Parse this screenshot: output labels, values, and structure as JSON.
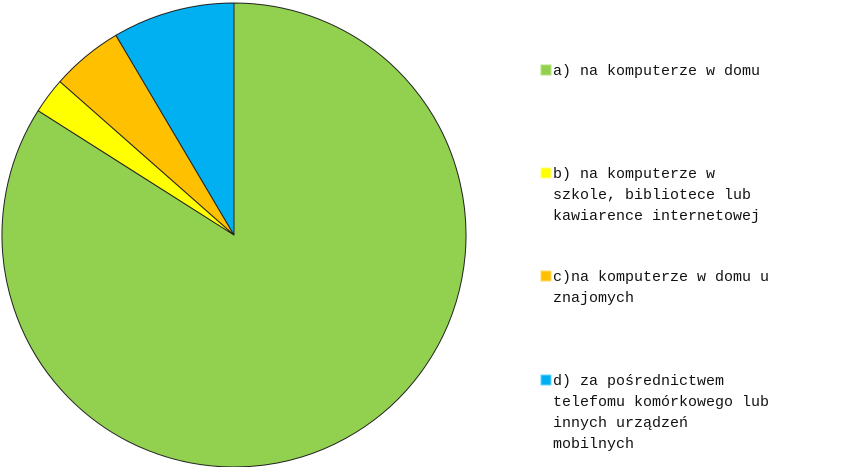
{
  "chart_data": {
    "type": "pie",
    "title": "",
    "slices": [
      {
        "label": "a) na komputerze w domu",
        "legend_lines": [
          "a) na komputerze w domu"
        ],
        "value": 84,
        "color": "#92d050",
        "edge": "#b5e07e"
      },
      {
        "label": "b) na komputerze w szkole, bibliotece lub kawiarence internetowej",
        "legend_lines": [
          "b) na komputerze w",
          "szkole, bibliotece lub",
          "kawiarence internetowej"
        ],
        "value": 2.5,
        "color": "#ffff00",
        "edge": "#ffff80"
      },
      {
        "label": "c)na komputerze w domu u znajomych",
        "legend_lines": [
          "c)na komputerze w domu u",
          "znajomych"
        ],
        "value": 5,
        "color": "#ffc000",
        "edge": "#ffd966"
      },
      {
        "label": "d) za pośrednictwem telefomu komórkowego lub innych urządzeń mobilnych",
        "legend_lines": [
          "d) za pośrednictwem",
          "telefomu komórkowego lub",
          "innych urządzeń",
          "mobilnych"
        ],
        "value": 8.5,
        "color": "#00b0f0",
        "edge": "#66d3ff"
      }
    ],
    "start_angle_deg": 0,
    "direction": "clockwise",
    "legend_position": "right"
  }
}
